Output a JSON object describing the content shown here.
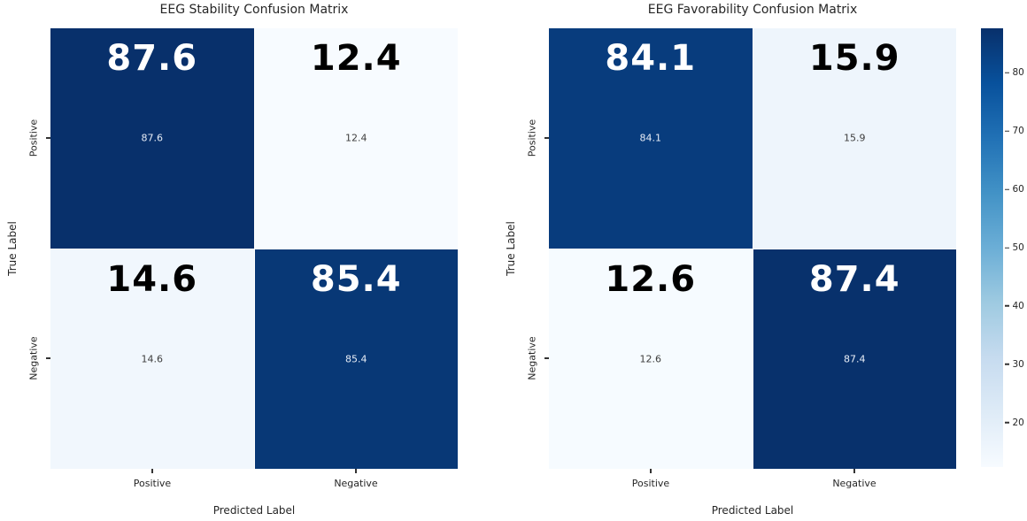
{
  "figure": {
    "background": "#ffffff",
    "text_color": "#262626",
    "tick_color": "#333333"
  },
  "chart_data": [
    {
      "type": "heatmap",
      "title": "EEG Stability Confusion Matrix",
      "xlabel": "Predicted Label",
      "ylabel": "True Label",
      "x_ticklabels": [
        "Positive",
        "Negative"
      ],
      "y_ticklabels": [
        "Positive",
        "Negative"
      ],
      "rows": [
        [
          87.6,
          12.4
        ],
        [
          14.6,
          85.4
        ]
      ],
      "annotation_style": "each cell shows its value twice: large bold near cell top, small at cell center"
    },
    {
      "type": "heatmap",
      "title": "EEG Favorability Confusion Matrix",
      "xlabel": "Predicted Label",
      "ylabel": "True Label",
      "x_ticklabels": [
        "Positive",
        "Negative"
      ],
      "y_ticklabels": [
        "Positive",
        "Negative"
      ],
      "rows": [
        [
          84.1,
          15.9
        ],
        [
          12.6,
          87.4
        ]
      ],
      "annotation_style": "each cell shows its value twice: large bold near cell top, small at cell center"
    }
  ],
  "colorbar": {
    "colormap": "Blues",
    "vmin": 12.4,
    "vmax": 87.6,
    "ticks": [
      80,
      70,
      60,
      50,
      40,
      30,
      20
    ],
    "gradient_stops": [
      "#f7fbff",
      "#deebf7",
      "#c6dbef",
      "#9ecae1",
      "#6baed6",
      "#4292c6",
      "#2171b5",
      "#08519c",
      "#08306b"
    ]
  }
}
